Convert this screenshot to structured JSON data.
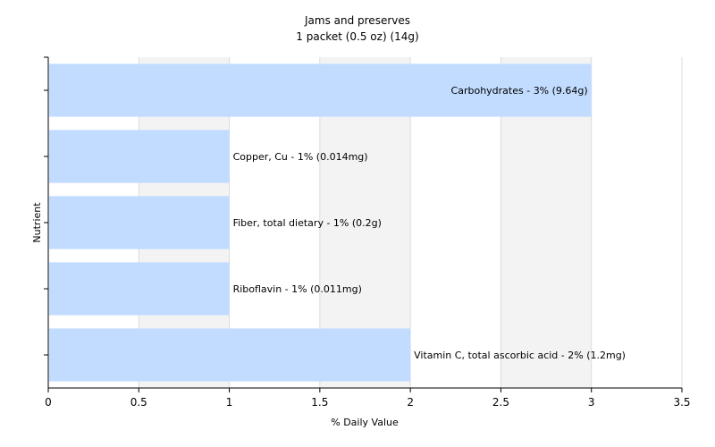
{
  "chart_data": {
    "type": "bar",
    "orientation": "horizontal",
    "title": "Jams and preserves",
    "subtitle": "1 packet (0.5 oz) (14g)",
    "xlabel": "% Daily Value",
    "ylabel": "Nutrient",
    "xlim": [
      0,
      3.5
    ],
    "xticks": [
      "0",
      "0.5",
      "1",
      "1.5",
      "2",
      "2.5",
      "3",
      "3.5"
    ],
    "grid": true,
    "bar_color": "#c2dcff",
    "bars": [
      {
        "label": "Carbohydrates - 3% (9.64g)",
        "value": 3
      },
      {
        "label": "Copper, Cu - 1% (0.014mg)",
        "value": 1
      },
      {
        "label": "Fiber, total dietary - 1% (0.2g)",
        "value": 1
      },
      {
        "label": "Riboflavin - 1% (0.011mg)",
        "value": 1
      },
      {
        "label": "Vitamin C, total ascorbic acid - 2% (1.2mg)",
        "value": 2
      }
    ]
  }
}
